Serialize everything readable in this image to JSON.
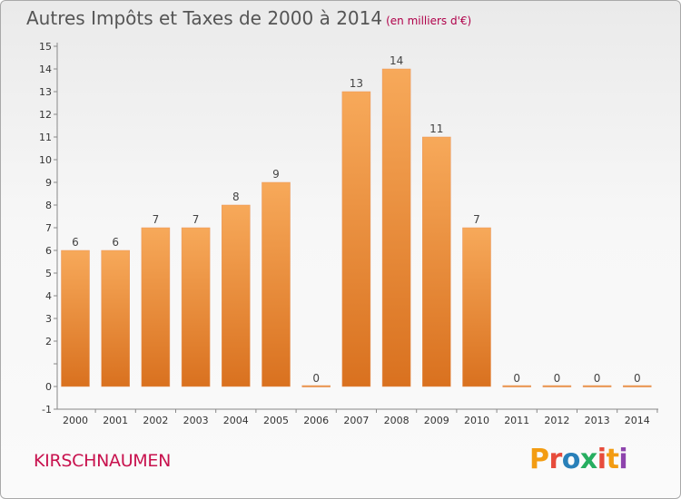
{
  "title": "Autres Impôts et Taxes de 2000 à 2014",
  "subtitle": "(en milliers d'€)",
  "commune": "KIRSCHNAUMEN",
  "logo": {
    "text": "Proxiti",
    "colors": [
      "#f39c12",
      "#e74c3c",
      "#2980b9",
      "#27ae60",
      "#e74c3c",
      "#f39c12",
      "#8e44ad"
    ]
  },
  "colors": {
    "bar_top": "#f7a95a",
    "bar_bottom": "#d9711f",
    "axis": "#888888",
    "text": "#333333"
  },
  "chart_data": {
    "type": "bar",
    "categories": [
      "2000",
      "2001",
      "2002",
      "2003",
      "2004",
      "2005",
      "2006",
      "2007",
      "2008",
      "2009",
      "2010",
      "2011",
      "2012",
      "2013",
      "2014"
    ],
    "values": [
      6,
      6,
      7,
      7,
      8,
      9,
      0,
      13,
      14,
      11,
      7,
      0,
      0,
      0,
      0
    ],
    "data_labels": [
      "6",
      "6",
      "7",
      "7",
      "8",
      "9",
      "0",
      "13",
      "14",
      "11",
      "7",
      "0",
      "0",
      "0",
      "0"
    ],
    "ylim": [
      -1,
      15
    ],
    "yticks": [
      -1,
      0,
      1,
      2,
      3,
      4,
      5,
      6,
      7,
      8,
      9,
      10,
      11,
      12,
      13,
      14,
      15
    ],
    "ytick_labels": [
      "-1",
      "0",
      "",
      "2",
      "3",
      "4",
      "5",
      "6",
      "7",
      "8",
      "9",
      "10",
      "11",
      "12",
      "13",
      "14",
      "15"
    ],
    "grid": false,
    "xlabel": "",
    "ylabel": ""
  }
}
